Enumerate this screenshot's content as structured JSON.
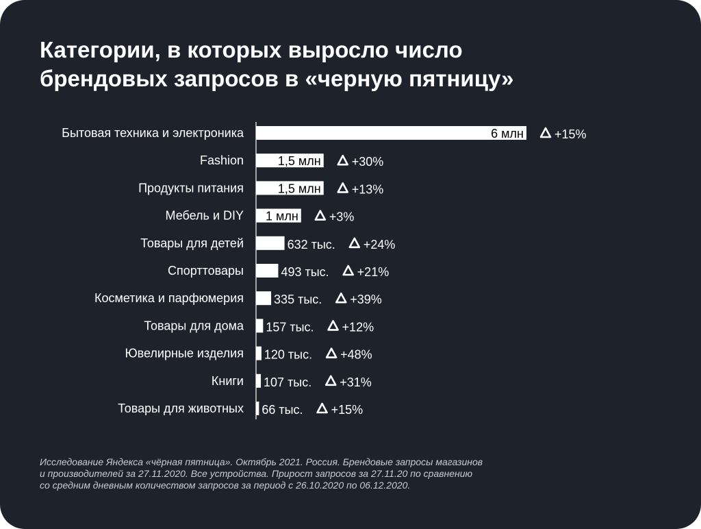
{
  "title_lines": [
    "Категории, в которых выросло число",
    "брендовых запросов в «черную пятницу»"
  ],
  "chart_data": {
    "type": "bar",
    "orientation": "horizontal",
    "categories": [
      "Бытовая техника и электроника",
      "Fashion",
      "Продукты питания",
      "Мебель и DIY",
      "Товары для детей",
      "Спорттовары",
      "Косметика и парфюмерия",
      "Товары для дома",
      "Ювелирные изделия",
      "Книги",
      "Товары для животных"
    ],
    "values": [
      6000000,
      1500000,
      1500000,
      1000000,
      632000,
      493000,
      335000,
      157000,
      120000,
      107000,
      66000
    ],
    "value_labels": [
      "6 млн",
      "1,5 млн",
      "1,5 млн",
      "1 млн",
      "632 тыс.",
      "493 тыс.",
      "335 тыс.",
      "157 тыс.",
      "120 тыс.",
      "107 тыс.",
      "66 тыс."
    ],
    "growth_labels": [
      "+15%",
      "+30%",
      "+13%",
      "+3%",
      "+24%",
      "+21%",
      "+39%",
      "+12%",
      "+48%",
      "+31%",
      "+15%"
    ],
    "xlim": [
      0,
      6000000
    ],
    "grid": false,
    "colors": {
      "background": "#1d222b",
      "bar": "#ffffff",
      "text": "#ffffff",
      "label_inside": "#000000"
    }
  },
  "footnote_lines": [
    "Исследование Яндекса «чёрная пятница». Октябрь 2021. Россия. Брендовые запросы магазинов",
    "и производителей за 27.11.2020. Все устройства. Прирост запросов за 27.11.20 по сравнению",
    "со средним дневным количеством запросов за период с 26.10.2020 по 06.12.2020."
  ]
}
